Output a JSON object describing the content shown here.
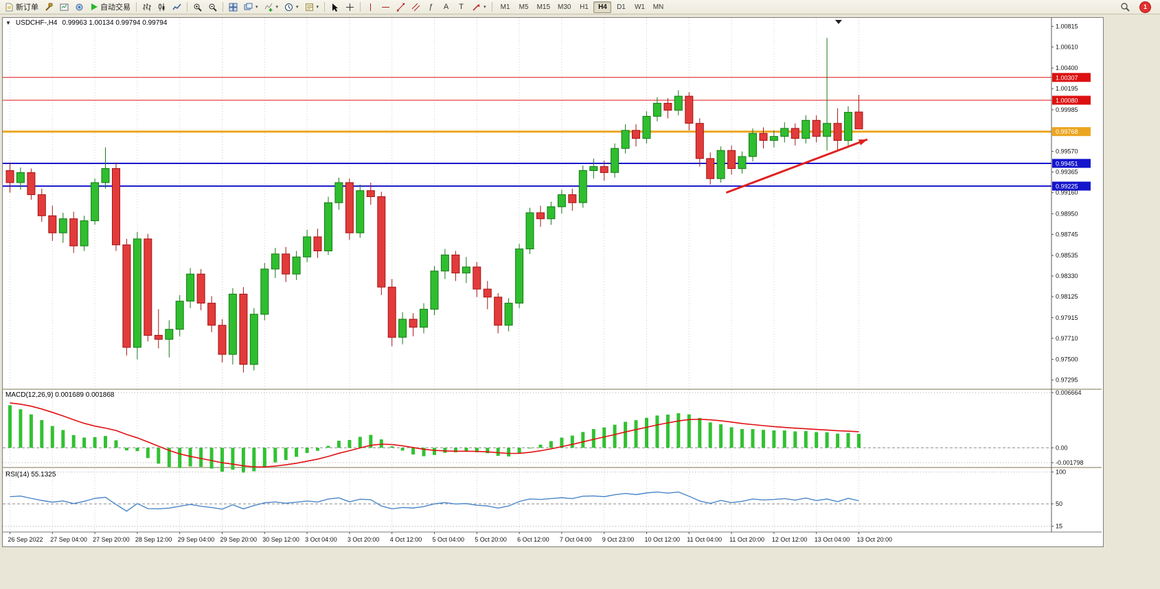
{
  "toolbar": {
    "new_order": {
      "label": "新订单"
    },
    "auto_trading": {
      "label": "自动交易"
    },
    "timeframes": {
      "items": [
        "M1",
        "M5",
        "M15",
        "M30",
        "H1",
        "H4",
        "D1",
        "W1",
        "MN"
      ],
      "active": "H4"
    },
    "notification": {
      "count": "1"
    }
  },
  "icons": {
    "fibonacci": "ƒ",
    "text_tool": "A",
    "label_tool": "T",
    "caret": "▾",
    "chart_dropdown": "▼"
  },
  "chart_window": {
    "title": {
      "symbol_period": "USDCHF-,H4",
      "ohlc": "0.99963 1.00134 0.99794 0.99794"
    },
    "indicators": {
      "macd": {
        "label": "MACD(12,26,9) 0.001689 0.001868",
        "axis_labels": [
          "0.006664",
          "0.00",
          "-0.001798"
        ],
        "axis_values": [
          0.006664,
          0,
          -0.001798
        ]
      },
      "rsi": {
        "label": "RSI(14) 55.1325",
        "axis_labels": [
          "100",
          "50",
          "15"
        ],
        "axis_values": [
          100,
          50,
          15
        ],
        "mid_level": 50
      }
    }
  },
  "chart_data": {
    "type": "candlestick",
    "symbol": "USDCHF",
    "period": "H4",
    "colors": {
      "bull": "#2fbe2f",
      "bull_border": "#157815",
      "bear": "#e23b3b",
      "bear_border": "#a51212",
      "macd_hist": "#32c132",
      "macd_signal": "#e01010",
      "rsi_line": "#4a86c8",
      "grid": "#cecece"
    },
    "scale": {
      "price_max": 1.009,
      "price_min": 0.9721,
      "macd_max": 0.007,
      "macd_min": -0.0023,
      "rsi_max": 105,
      "rsi_min": 8
    },
    "price_axis_labels": [
      "1.00815",
      "1.00610",
      "1.00400",
      "1.00195",
      "0.99985",
      "0.99570",
      "0.99365",
      "0.99160",
      "0.98950",
      "0.98745",
      "0.98535",
      "0.98330",
      "0.98125",
      "0.97915",
      "0.97710",
      "0.97500",
      "0.97295"
    ],
    "hlines": [
      {
        "price": 1.00307,
        "label": "1.00307",
        "color": "#dd1111",
        "width": 1
      },
      {
        "price": 1.0008,
        "label": "1.00080",
        "color": "#dd1111",
        "width": 1
      },
      {
        "price": 0.99768,
        "label": "0.99768",
        "color": "#eca520",
        "width": 3
      },
      {
        "price": 0.99451,
        "label": "0.99451",
        "color": "#1515cc",
        "width": 2
      },
      {
        "price": 0.99225,
        "label": "0.99225",
        "color": "#1515cc",
        "width": 2
      }
    ],
    "trend_arrow": {
      "from": {
        "candle": 67.5,
        "price": 0.9916
      },
      "to": {
        "candle": 80.8,
        "price": 0.9969
      },
      "color": "#e02020"
    },
    "time_labels": [
      "26 Sep 2022",
      "27 Sep 04:00",
      "27 Sep 20:00",
      "28 Sep 12:00",
      "29 Sep 04:00",
      "29 Sep 20:00",
      "30 Sep 12:00",
      "3 Oct 04:00",
      "3 Oct 20:00",
      "4 Oct 12:00",
      "5 Oct 04:00",
      "5 Oct 20:00",
      "6 Oct 12:00",
      "7 Oct 04:00",
      "9 Oct 23:00",
      "10 Oct 12:00",
      "11 Oct 04:00",
      "11 Oct 20:00",
      "12 Oct 12:00",
      "13 Oct 04:00",
      "13 Oct 20:00"
    ],
    "candles": [
      [
        0.9938,
        0.9946,
        0.9916,
        0.9926
      ],
      [
        0.9926,
        0.9941,
        0.9919,
        0.9936
      ],
      [
        0.9936,
        0.994,
        0.9909,
        0.9914
      ],
      [
        0.9914,
        0.992,
        0.9887,
        0.9893
      ],
      [
        0.9893,
        0.9903,
        0.9868,
        0.9876
      ],
      [
        0.9876,
        0.9896,
        0.9866,
        0.989
      ],
      [
        0.989,
        0.9897,
        0.9856,
        0.9863
      ],
      [
        0.9863,
        0.9893,
        0.9858,
        0.9888
      ],
      [
        0.9888,
        0.993,
        0.9884,
        0.9926
      ],
      [
        0.9926,
        0.9961,
        0.992,
        0.994
      ],
      [
        0.994,
        0.9946,
        0.9858,
        0.9864
      ],
      [
        0.9864,
        0.987,
        0.9754,
        0.9762
      ],
      [
        0.9762,
        0.9877,
        0.975,
        0.987
      ],
      [
        0.987,
        0.9875,
        0.9768,
        0.9774
      ],
      [
        0.9774,
        0.98,
        0.9761,
        0.977
      ],
      [
        0.977,
        0.9789,
        0.9752,
        0.978
      ],
      [
        0.978,
        0.9814,
        0.9773,
        0.9808
      ],
      [
        0.9808,
        0.9841,
        0.9801,
        0.9835
      ],
      [
        0.9835,
        0.984,
        0.9799,
        0.9806
      ],
      [
        0.9806,
        0.9813,
        0.9777,
        0.9784
      ],
      [
        0.9784,
        0.979,
        0.9747,
        0.9755
      ],
      [
        0.9755,
        0.9821,
        0.9745,
        0.9815
      ],
      [
        0.9815,
        0.9822,
        0.9737,
        0.9745
      ],
      [
        0.9745,
        0.9801,
        0.9739,
        0.9795
      ],
      [
        0.9795,
        0.9846,
        0.9789,
        0.984
      ],
      [
        0.984,
        0.9861,
        0.9831,
        0.9855
      ],
      [
        0.9855,
        0.9862,
        0.9827,
        0.9835
      ],
      [
        0.9835,
        0.9858,
        0.9829,
        0.9852
      ],
      [
        0.9852,
        0.9879,
        0.9847,
        0.9872
      ],
      [
        0.9872,
        0.988,
        0.9851,
        0.9858
      ],
      [
        0.9858,
        0.9912,
        0.9854,
        0.9906
      ],
      [
        0.9906,
        0.9931,
        0.9899,
        0.9926
      ],
      [
        0.9926,
        0.993,
        0.9869,
        0.9876
      ],
      [
        0.9876,
        0.9924,
        0.9871,
        0.9918
      ],
      [
        0.9918,
        0.9926,
        0.9904,
        0.9912
      ],
      [
        0.9912,
        0.9917,
        0.9814,
        0.9822
      ],
      [
        0.9822,
        0.983,
        0.9763,
        0.9772
      ],
      [
        0.9772,
        0.9797,
        0.9765,
        0.979
      ],
      [
        0.979,
        0.9796,
        0.9773,
        0.9782
      ],
      [
        0.9782,
        0.9806,
        0.9776,
        0.98
      ],
      [
        0.98,
        0.9843,
        0.9794,
        0.9838
      ],
      [
        0.9838,
        0.986,
        0.983,
        0.9854
      ],
      [
        0.9854,
        0.9858,
        0.9828,
        0.9836
      ],
      [
        0.9836,
        0.9852,
        0.9826,
        0.9842
      ],
      [
        0.9842,
        0.9847,
        0.9812,
        0.982
      ],
      [
        0.982,
        0.9828,
        0.98,
        0.9812
      ],
      [
        0.9812,
        0.9816,
        0.9776,
        0.9784
      ],
      [
        0.9784,
        0.9811,
        0.9778,
        0.9806
      ],
      [
        0.9806,
        0.9865,
        0.9801,
        0.986
      ],
      [
        0.986,
        0.9901,
        0.9855,
        0.9896
      ],
      [
        0.9896,
        0.9903,
        0.9882,
        0.989
      ],
      [
        0.989,
        0.9907,
        0.9884,
        0.9902
      ],
      [
        0.9902,
        0.9919,
        0.9895,
        0.9914
      ],
      [
        0.9914,
        0.992,
        0.9898,
        0.9906
      ],
      [
        0.9906,
        0.9943,
        0.9901,
        0.9938
      ],
      [
        0.9938,
        0.995,
        0.993,
        0.9942
      ],
      [
        0.9942,
        0.9948,
        0.9928,
        0.9936
      ],
      [
        0.9936,
        0.9965,
        0.9931,
        0.996
      ],
      [
        0.996,
        0.9984,
        0.9955,
        0.9978
      ],
      [
        0.9978,
        0.9984,
        0.9962,
        0.997
      ],
      [
        0.997,
        0.9997,
        0.9965,
        0.9992
      ],
      [
        0.9992,
        1.0011,
        0.9987,
        1.0005
      ],
      [
        1.0005,
        1.001,
        0.999,
        0.9998
      ],
      [
        0.9998,
        1.0018,
        0.9993,
        1.0012
      ],
      [
        1.0012,
        1.0016,
        0.9978,
        0.9985
      ],
      [
        0.9985,
        0.999,
        0.9942,
        0.995
      ],
      [
        0.995,
        0.9956,
        0.9924,
        0.993
      ],
      [
        0.993,
        0.9962,
        0.9926,
        0.9958
      ],
      [
        0.9958,
        0.9963,
        0.9934,
        0.994
      ],
      [
        0.994,
        0.9957,
        0.9935,
        0.9952
      ],
      [
        0.9952,
        0.998,
        0.9947,
        0.9975
      ],
      [
        0.9975,
        0.9981,
        0.996,
        0.9968
      ],
      [
        0.9968,
        0.9978,
        0.9961,
        0.9972
      ],
      [
        0.9972,
        0.9986,
        0.9966,
        0.998
      ],
      [
        0.998,
        0.9985,
        0.9963,
        0.997
      ],
      [
        0.997,
        0.9993,
        0.9965,
        0.9988
      ],
      [
        0.9988,
        0.9993,
        0.9966,
        0.9972
      ],
      [
        0.9972,
        1.007,
        0.9958,
        0.9985
      ],
      [
        0.9985,
        1.0,
        0.9958,
        0.9968
      ],
      [
        0.9968,
        1.0002,
        0.9962,
        0.9996
      ],
      [
        0.99963,
        1.00134,
        0.99794,
        0.99794
      ]
    ]
  }
}
